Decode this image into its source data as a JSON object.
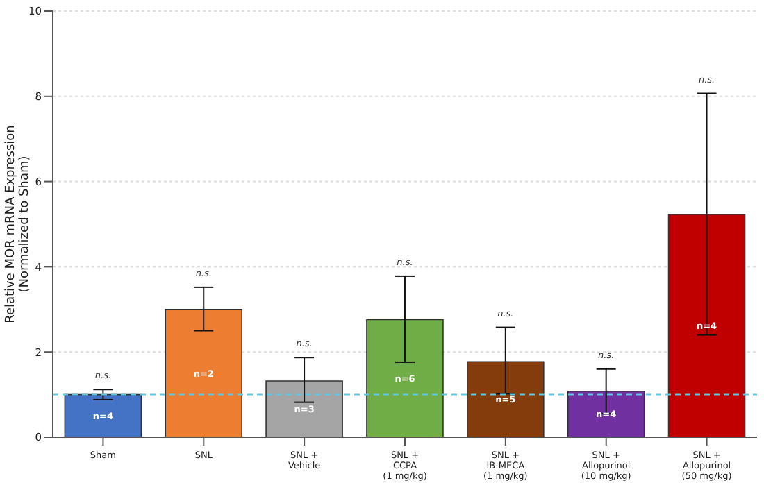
{
  "chart_data": {
    "type": "bar",
    "ylabel": "Relative MOR mRNA Expression\n(Normalized to Sham)",
    "categories": [
      "Sham",
      "SNL",
      "SNL +\nVehicle",
      "SNL +\nCCPA\n(1 mg/kg)",
      "SNL +\nIB-MECA\n(1 mg/kg)",
      "SNL +\nAllopurinol\n(10 mg/kg)",
      "SNL +\nAllopurinol\n(50 mg/kg)"
    ],
    "values": [
      1.0,
      3.0,
      1.32,
      2.76,
      1.77,
      1.08,
      5.23
    ],
    "colors": [
      "#4472c4",
      "#ed7d31",
      "#a5a5a5",
      "#70ad47",
      "#843c0c",
      "#7030a0",
      "#c00000"
    ],
    "errors": [
      [
        0.88,
        1.12
      ],
      [
        2.5,
        3.52
      ],
      [
        0.82,
        1.87
      ],
      [
        1.76,
        3.78
      ],
      [
        1.02,
        2.58
      ],
      [
        0.55,
        1.6
      ],
      [
        2.4,
        8.07
      ]
    ],
    "ylim": [
      0,
      10
    ],
    "yticks": [
      0,
      2,
      4,
      6,
      8,
      10
    ],
    "grid": "y",
    "ref_lines": [
      {
        "axis": "y",
        "value": 1,
        "label": null,
        "color": "#5bc8e8",
        "line_style": "dashed"
      }
    ],
    "annotations": [
      "n.s.",
      "n.s.",
      "n.s.",
      "n.s.",
      "n.s.",
      "n.s.",
      "n.s.",
      "n=4",
      "n=2",
      "n=3",
      "n=6",
      "n=5",
      "n=4",
      "n=4"
    ]
  }
}
